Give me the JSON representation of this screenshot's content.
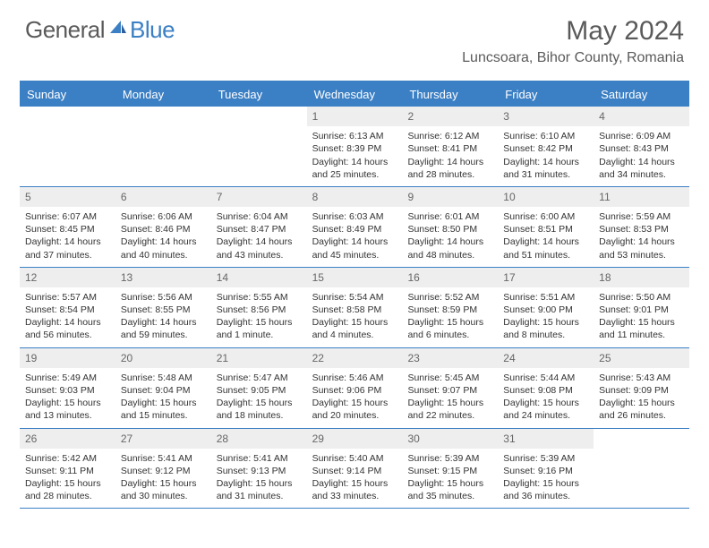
{
  "logo": {
    "text1": "General",
    "text2": "Blue"
  },
  "title": "May 2024",
  "location": "Luncsoara, Bihor County, Romania",
  "colors": {
    "accent": "#3b7fc4",
    "header_gray": "#eeeeee",
    "text": "#333333",
    "muted": "#666666"
  },
  "weekdays": [
    "Sunday",
    "Monday",
    "Tuesday",
    "Wednesday",
    "Thursday",
    "Friday",
    "Saturday"
  ],
  "weeks": [
    [
      {
        "n": "",
        "sunrise": "",
        "sunset": "",
        "daylight1": "",
        "daylight2": ""
      },
      {
        "n": "",
        "sunrise": "",
        "sunset": "",
        "daylight1": "",
        "daylight2": ""
      },
      {
        "n": "",
        "sunrise": "",
        "sunset": "",
        "daylight1": "",
        "daylight2": ""
      },
      {
        "n": "1",
        "sunrise": "Sunrise: 6:13 AM",
        "sunset": "Sunset: 8:39 PM",
        "daylight1": "Daylight: 14 hours",
        "daylight2": "and 25 minutes."
      },
      {
        "n": "2",
        "sunrise": "Sunrise: 6:12 AM",
        "sunset": "Sunset: 8:41 PM",
        "daylight1": "Daylight: 14 hours",
        "daylight2": "and 28 minutes."
      },
      {
        "n": "3",
        "sunrise": "Sunrise: 6:10 AM",
        "sunset": "Sunset: 8:42 PM",
        "daylight1": "Daylight: 14 hours",
        "daylight2": "and 31 minutes."
      },
      {
        "n": "4",
        "sunrise": "Sunrise: 6:09 AM",
        "sunset": "Sunset: 8:43 PM",
        "daylight1": "Daylight: 14 hours",
        "daylight2": "and 34 minutes."
      }
    ],
    [
      {
        "n": "5",
        "sunrise": "Sunrise: 6:07 AM",
        "sunset": "Sunset: 8:45 PM",
        "daylight1": "Daylight: 14 hours",
        "daylight2": "and 37 minutes."
      },
      {
        "n": "6",
        "sunrise": "Sunrise: 6:06 AM",
        "sunset": "Sunset: 8:46 PM",
        "daylight1": "Daylight: 14 hours",
        "daylight2": "and 40 minutes."
      },
      {
        "n": "7",
        "sunrise": "Sunrise: 6:04 AM",
        "sunset": "Sunset: 8:47 PM",
        "daylight1": "Daylight: 14 hours",
        "daylight2": "and 43 minutes."
      },
      {
        "n": "8",
        "sunrise": "Sunrise: 6:03 AM",
        "sunset": "Sunset: 8:49 PM",
        "daylight1": "Daylight: 14 hours",
        "daylight2": "and 45 minutes."
      },
      {
        "n": "9",
        "sunrise": "Sunrise: 6:01 AM",
        "sunset": "Sunset: 8:50 PM",
        "daylight1": "Daylight: 14 hours",
        "daylight2": "and 48 minutes."
      },
      {
        "n": "10",
        "sunrise": "Sunrise: 6:00 AM",
        "sunset": "Sunset: 8:51 PM",
        "daylight1": "Daylight: 14 hours",
        "daylight2": "and 51 minutes."
      },
      {
        "n": "11",
        "sunrise": "Sunrise: 5:59 AM",
        "sunset": "Sunset: 8:53 PM",
        "daylight1": "Daylight: 14 hours",
        "daylight2": "and 53 minutes."
      }
    ],
    [
      {
        "n": "12",
        "sunrise": "Sunrise: 5:57 AM",
        "sunset": "Sunset: 8:54 PM",
        "daylight1": "Daylight: 14 hours",
        "daylight2": "and 56 minutes."
      },
      {
        "n": "13",
        "sunrise": "Sunrise: 5:56 AM",
        "sunset": "Sunset: 8:55 PM",
        "daylight1": "Daylight: 14 hours",
        "daylight2": "and 59 minutes."
      },
      {
        "n": "14",
        "sunrise": "Sunrise: 5:55 AM",
        "sunset": "Sunset: 8:56 PM",
        "daylight1": "Daylight: 15 hours",
        "daylight2": "and 1 minute."
      },
      {
        "n": "15",
        "sunrise": "Sunrise: 5:54 AM",
        "sunset": "Sunset: 8:58 PM",
        "daylight1": "Daylight: 15 hours",
        "daylight2": "and 4 minutes."
      },
      {
        "n": "16",
        "sunrise": "Sunrise: 5:52 AM",
        "sunset": "Sunset: 8:59 PM",
        "daylight1": "Daylight: 15 hours",
        "daylight2": "and 6 minutes."
      },
      {
        "n": "17",
        "sunrise": "Sunrise: 5:51 AM",
        "sunset": "Sunset: 9:00 PM",
        "daylight1": "Daylight: 15 hours",
        "daylight2": "and 8 minutes."
      },
      {
        "n": "18",
        "sunrise": "Sunrise: 5:50 AM",
        "sunset": "Sunset: 9:01 PM",
        "daylight1": "Daylight: 15 hours",
        "daylight2": "and 11 minutes."
      }
    ],
    [
      {
        "n": "19",
        "sunrise": "Sunrise: 5:49 AM",
        "sunset": "Sunset: 9:03 PM",
        "daylight1": "Daylight: 15 hours",
        "daylight2": "and 13 minutes."
      },
      {
        "n": "20",
        "sunrise": "Sunrise: 5:48 AM",
        "sunset": "Sunset: 9:04 PM",
        "daylight1": "Daylight: 15 hours",
        "daylight2": "and 15 minutes."
      },
      {
        "n": "21",
        "sunrise": "Sunrise: 5:47 AM",
        "sunset": "Sunset: 9:05 PM",
        "daylight1": "Daylight: 15 hours",
        "daylight2": "and 18 minutes."
      },
      {
        "n": "22",
        "sunrise": "Sunrise: 5:46 AM",
        "sunset": "Sunset: 9:06 PM",
        "daylight1": "Daylight: 15 hours",
        "daylight2": "and 20 minutes."
      },
      {
        "n": "23",
        "sunrise": "Sunrise: 5:45 AM",
        "sunset": "Sunset: 9:07 PM",
        "daylight1": "Daylight: 15 hours",
        "daylight2": "and 22 minutes."
      },
      {
        "n": "24",
        "sunrise": "Sunrise: 5:44 AM",
        "sunset": "Sunset: 9:08 PM",
        "daylight1": "Daylight: 15 hours",
        "daylight2": "and 24 minutes."
      },
      {
        "n": "25",
        "sunrise": "Sunrise: 5:43 AM",
        "sunset": "Sunset: 9:09 PM",
        "daylight1": "Daylight: 15 hours",
        "daylight2": "and 26 minutes."
      }
    ],
    [
      {
        "n": "26",
        "sunrise": "Sunrise: 5:42 AM",
        "sunset": "Sunset: 9:11 PM",
        "daylight1": "Daylight: 15 hours",
        "daylight2": "and 28 minutes."
      },
      {
        "n": "27",
        "sunrise": "Sunrise: 5:41 AM",
        "sunset": "Sunset: 9:12 PM",
        "daylight1": "Daylight: 15 hours",
        "daylight2": "and 30 minutes."
      },
      {
        "n": "28",
        "sunrise": "Sunrise: 5:41 AM",
        "sunset": "Sunset: 9:13 PM",
        "daylight1": "Daylight: 15 hours",
        "daylight2": "and 31 minutes."
      },
      {
        "n": "29",
        "sunrise": "Sunrise: 5:40 AM",
        "sunset": "Sunset: 9:14 PM",
        "daylight1": "Daylight: 15 hours",
        "daylight2": "and 33 minutes."
      },
      {
        "n": "30",
        "sunrise": "Sunrise: 5:39 AM",
        "sunset": "Sunset: 9:15 PM",
        "daylight1": "Daylight: 15 hours",
        "daylight2": "and 35 minutes."
      },
      {
        "n": "31",
        "sunrise": "Sunrise: 5:39 AM",
        "sunset": "Sunset: 9:16 PM",
        "daylight1": "Daylight: 15 hours",
        "daylight2": "and 36 minutes."
      },
      {
        "n": "",
        "sunrise": "",
        "sunset": "",
        "daylight1": "",
        "daylight2": ""
      }
    ]
  ]
}
